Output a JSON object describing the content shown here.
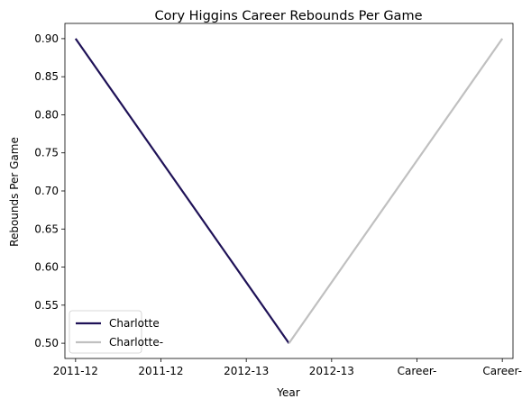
{
  "chart_data": {
    "type": "line",
    "title": "Cory Higgins Career Rebounds Per Game",
    "xlabel": "Year",
    "ylabel": "Rebounds Per Game",
    "x_tick_labels": [
      "2011-12",
      "2011-12",
      "2012-13",
      "2012-13",
      "Career-",
      "Career-"
    ],
    "y_ticks": [
      0.5,
      0.55,
      0.6,
      0.65,
      0.7,
      0.75,
      0.8,
      0.85,
      0.9
    ],
    "ylim": [
      0.48,
      0.92
    ],
    "xlim": [
      -0.125,
      5.125
    ],
    "grid": false,
    "legend_position": "lower-left",
    "series": [
      {
        "name": "Charlotte",
        "color": "#1f1257",
        "x": [
          0,
          2.5
        ],
        "y": [
          0.9,
          0.5
        ]
      },
      {
        "name": "Charlotte-",
        "color": "#c0c0c0",
        "x": [
          2.5,
          5
        ],
        "y": [
          0.5,
          0.9
        ]
      }
    ]
  }
}
